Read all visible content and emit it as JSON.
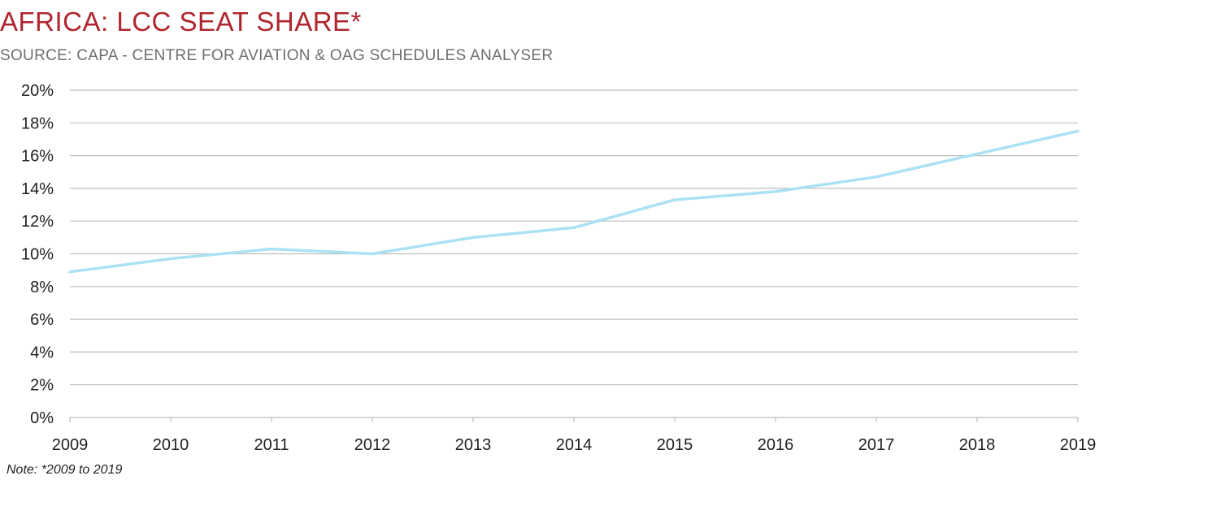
{
  "title": "AFRICA: LCC SEAT SHARE*",
  "subtitle": "SOURCE: CAPA - CENTRE FOR AVIATION & OAG SCHEDULES ANALYSER",
  "note": "Note: *2009 to 2019",
  "colors": {
    "title": "#b0262f",
    "line": "#abe1f5",
    "grid": "#bcbec0",
    "text": "#231f20",
    "subtitle": "#6d6e71"
  },
  "chart_data": {
    "type": "line",
    "title": "AFRICA: LCC SEAT SHARE*",
    "xlabel": "",
    "ylabel": "",
    "ylim": [
      0,
      20
    ],
    "yticks": [
      0,
      2,
      4,
      6,
      8,
      10,
      12,
      14,
      16,
      18,
      20
    ],
    "ytick_labels": [
      "0%",
      "2%",
      "4%",
      "6%",
      "8%",
      "10%",
      "12%",
      "14%",
      "16%",
      "18%",
      "20%"
    ],
    "x": [
      "2009",
      "2010",
      "2011",
      "2012",
      "2013",
      "2014",
      "2015",
      "2016",
      "2017",
      "2018",
      "2019"
    ],
    "grid": true,
    "legend": "none",
    "series": [
      {
        "values": [
          8.9,
          9.7,
          10.3,
          10.0,
          11.0,
          11.6,
          13.3,
          13.8,
          14.7,
          16.1,
          17.5
        ]
      }
    ]
  }
}
